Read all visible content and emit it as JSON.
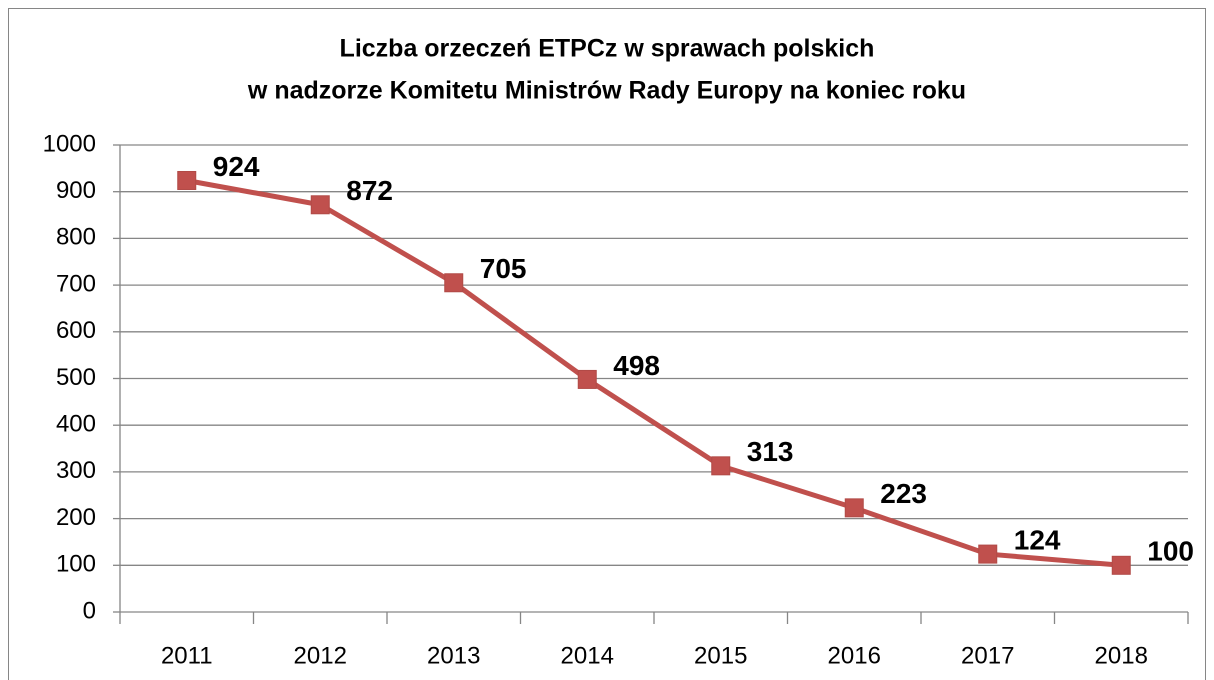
{
  "chart_data": {
    "type": "line",
    "title": [
      "Liczba orzeczeń ETPCz w sprawach polskich",
      "w nadzorze Komitetu Ministrów Rady Europy na koniec roku"
    ],
    "categories": [
      "2011",
      "2012",
      "2013",
      "2014",
      "2015",
      "2016",
      "2017",
      "2018"
    ],
    "series": [
      {
        "name": "Liczba orzeczeń",
        "color": "#c0504d",
        "values": [
          924,
          872,
          705,
          498,
          313,
          223,
          124,
          100
        ]
      }
    ],
    "ylim": [
      0,
      1000
    ],
    "yticks": [
      0,
      100,
      200,
      300,
      400,
      500,
      600,
      700,
      800,
      900,
      1000
    ],
    "grid": true
  }
}
